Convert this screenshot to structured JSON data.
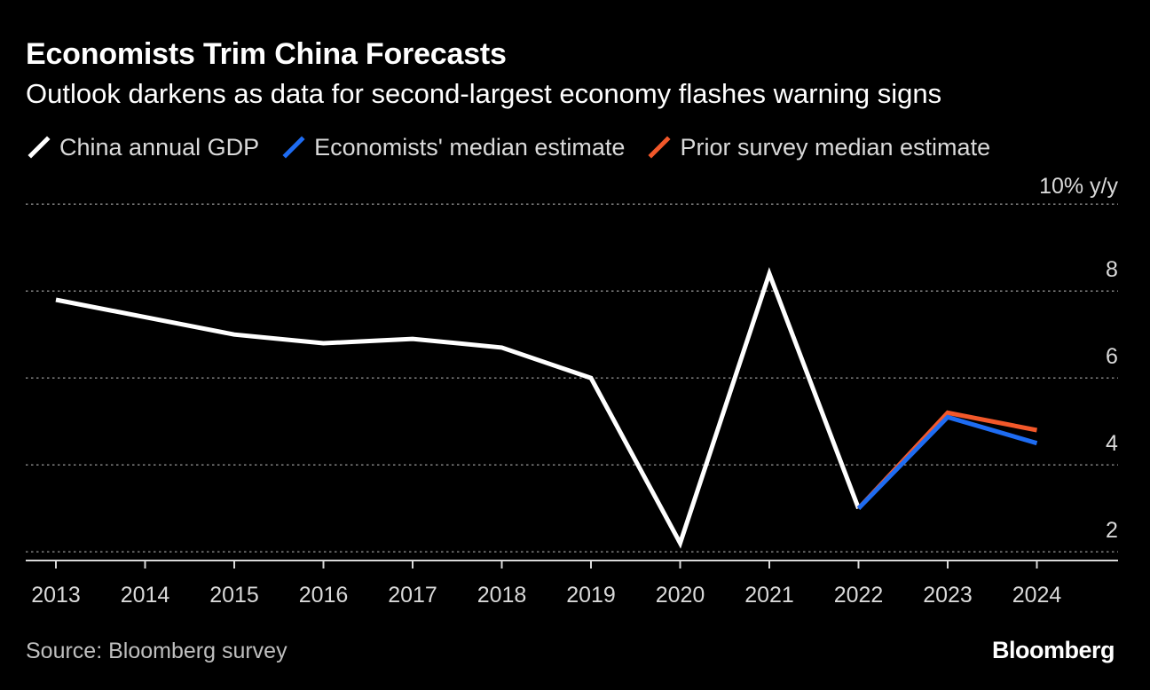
{
  "header": {
    "title": "Economists Trim China Forecasts",
    "subtitle": "Outlook darkens as data for second-largest economy flashes warning signs"
  },
  "legend": [
    {
      "label": "China annual GDP",
      "color": "#ffffff"
    },
    {
      "label": "Economists' median estimate",
      "color": "#1e6cf2"
    },
    {
      "label": "Prior survey median estimate",
      "color": "#f2582a"
    }
  ],
  "footer": {
    "source": "Source: Bloomberg survey",
    "brand": "Bloomberg"
  },
  "chart_data": {
    "type": "line",
    "title": "Economists Trim China Forecasts",
    "subtitle": "Outlook darkens as data for second-largest economy flashes warning signs",
    "unit_label": "10% y/y",
    "xlabel": "",
    "ylabel": "",
    "categories": [
      "2013",
      "2014",
      "2015",
      "2016",
      "2017",
      "2018",
      "2019",
      "2020",
      "2021",
      "2022",
      "2023",
      "2024"
    ],
    "ylim": [
      1.8,
      10
    ],
    "y_ticks": [
      {
        "value": 10,
        "label": ""
      },
      {
        "value": 8,
        "label": "8"
      },
      {
        "value": 6,
        "label": "6"
      },
      {
        "value": 4,
        "label": "4"
      },
      {
        "value": 2,
        "label": "2"
      }
    ],
    "grid": true,
    "legend_position": "top-left",
    "series": [
      {
        "name": "China annual GDP",
        "color": "#ffffff",
        "x": [
          "2013",
          "2014",
          "2015",
          "2016",
          "2017",
          "2018",
          "2019",
          "2020",
          "2021",
          "2022"
        ],
        "values": [
          7.8,
          7.4,
          7.0,
          6.8,
          6.9,
          6.7,
          6.0,
          2.2,
          8.4,
          3.0
        ]
      },
      {
        "name": "Prior survey median estimate",
        "color": "#f2582a",
        "x": [
          "2022",
          "2023",
          "2024"
        ],
        "values": [
          3.0,
          5.2,
          4.8
        ]
      },
      {
        "name": "Economists' median estimate",
        "color": "#1e6cf2",
        "x": [
          "2022",
          "2023",
          "2024"
        ],
        "values": [
          3.0,
          5.1,
          4.5
        ]
      }
    ]
  }
}
